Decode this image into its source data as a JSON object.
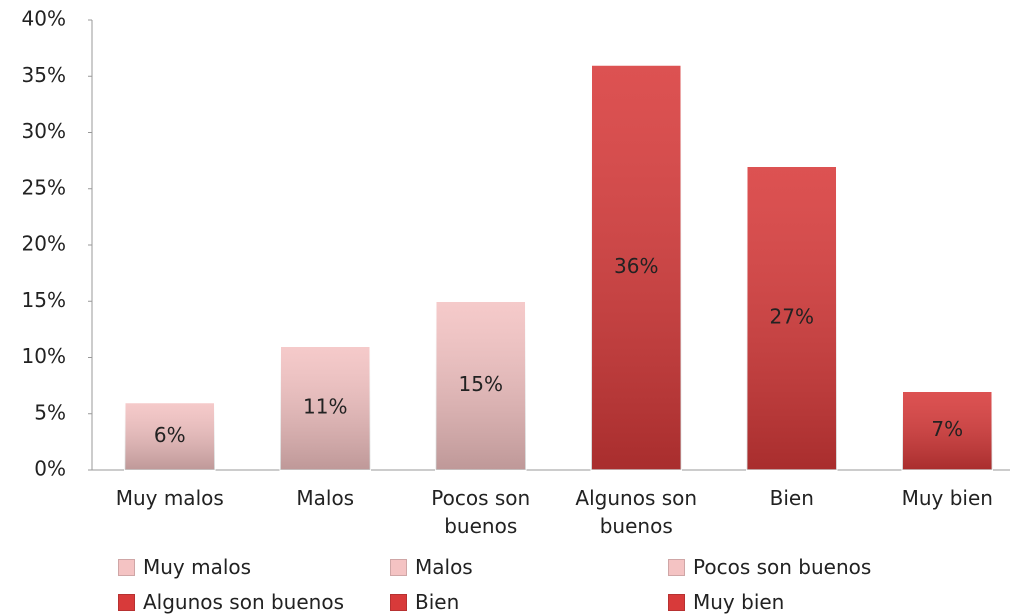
{
  "chart_data": {
    "type": "bar",
    "categories": [
      "Muy malos",
      "Malos",
      "Pocos son buenos",
      "Algunos son buenos",
      "Bien",
      "Muy bien"
    ],
    "values": [
      6,
      11,
      15,
      36,
      27,
      7
    ],
    "value_labels": [
      "6%",
      "11%",
      "15%",
      "36%",
      "27%",
      "7%"
    ],
    "colors": [
      "#f4c3c3",
      "#f4c3c3",
      "#f4c3c3",
      "#d83a3a",
      "#d83a3a",
      "#d83a3a"
    ],
    "ylim": [
      0,
      40
    ],
    "yticks": [
      {
        "value": 0,
        "label": "0%"
      },
      {
        "value": 5,
        "label": "5%"
      },
      {
        "value": 10,
        "label": "10%"
      },
      {
        "value": 15,
        "label": "15%"
      },
      {
        "value": 20,
        "label": "20%"
      },
      {
        "value": 25,
        "label": "25%"
      },
      {
        "value": 30,
        "label": "30%"
      },
      {
        "value": 35,
        "label": "35%"
      },
      {
        "value": 40,
        "label": "40%"
      }
    ],
    "grid": false,
    "legend": "bottom"
  }
}
